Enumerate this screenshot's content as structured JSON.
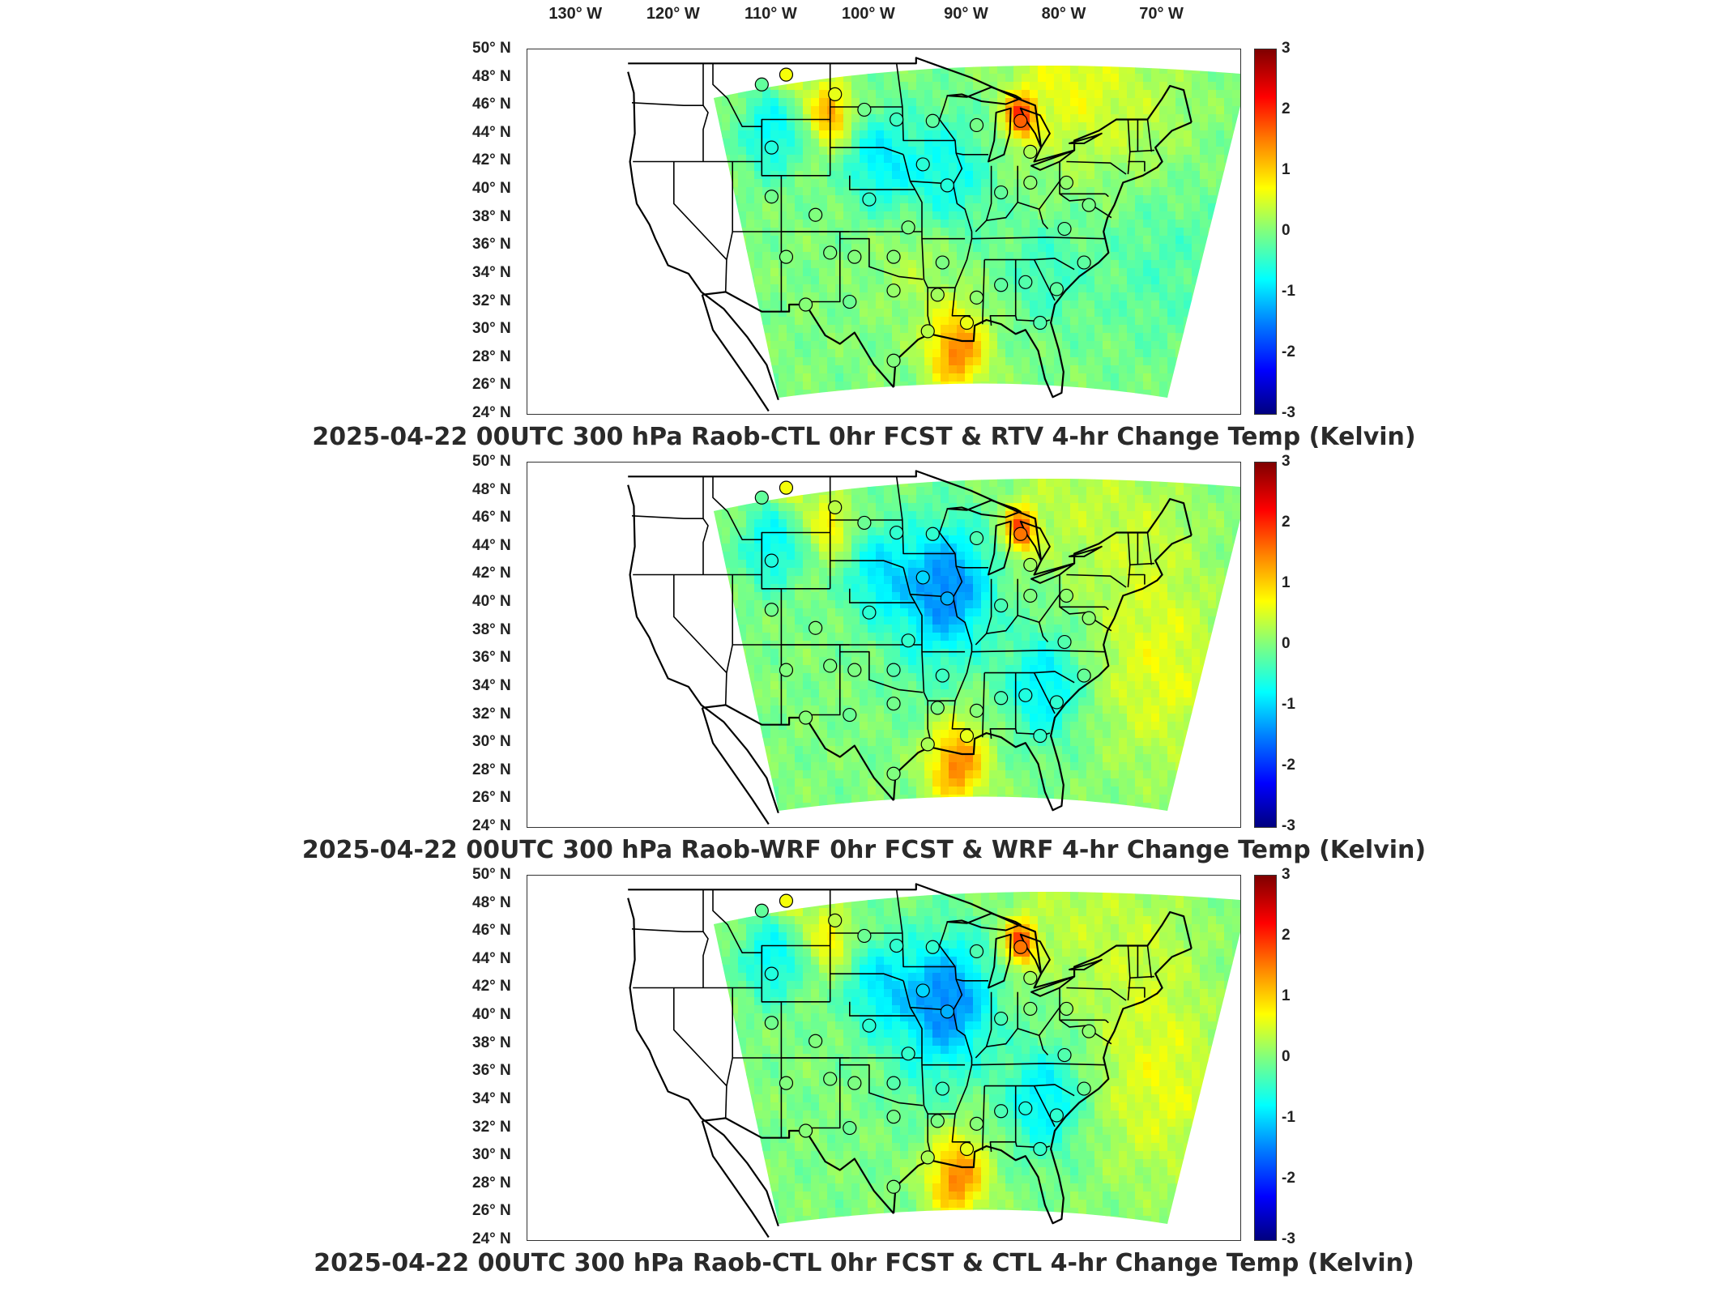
{
  "lon_labels": [
    "130° W",
    "120° W",
    "110° W",
    "100° W",
    "90° W",
    "80° W",
    "70° W"
  ],
  "lat_labels": [
    "50° N",
    "48° N",
    "46° N",
    "44° N",
    "42° N",
    "40° N",
    "38° N",
    "36° N",
    "34° N",
    "32° N",
    "30° N",
    "28° N",
    "26° N",
    "24° N"
  ],
  "colorbar_ticks": [
    "3",
    "2",
    "1",
    "0",
    "-1",
    "-2",
    "-3"
  ],
  "colormap": [
    "#00007f",
    "#0000ff",
    "#007fff",
    "#00ffff",
    "#7fff7f",
    "#ffff00",
    "#ff7f00",
    "#ff0000",
    "#7f0000"
  ],
  "panels": [
    {
      "caption": "2025-04-22 00UTC 300 hPa Raob-CTL 0hr FCST & RTV 4-hr Change Temp (Kelvin)"
    },
    {
      "caption": "2025-04-22 00UTC 300 hPa Raob-WRF 0hr FCST & WRF 4-hr Change Temp (Kelvin)"
    },
    {
      "caption": "2025-04-22 00UTC 300 hPa Raob-CTL 0hr FCST & CTL 4-hr Change Temp (Kelvin)"
    }
  ],
  "chart_data": {
    "type": "heatmap",
    "value_range": [
      -3,
      3
    ],
    "lon_range": [
      -135,
      -62
    ],
    "lat_range": [
      24,
      50
    ],
    "field_description_units": "Kelvin",
    "raob_stations": [
      {
        "lon": -111.0,
        "lat": 47.5
      },
      {
        "lon": -108.5,
        "lat": 48.2
      },
      {
        "lon": -103.5,
        "lat": 46.8
      },
      {
        "lon": -100.5,
        "lat": 45.7
      },
      {
        "lon": -97.2,
        "lat": 45.0
      },
      {
        "lon": -93.5,
        "lat": 44.9
      },
      {
        "lon": -89.0,
        "lat": 44.6
      },
      {
        "lon": -84.5,
        "lat": 44.9
      },
      {
        "lon": -83.5,
        "lat": 42.7
      },
      {
        "lon": -110.0,
        "lat": 43.0
      },
      {
        "lon": -105.5,
        "lat": 38.2
      },
      {
        "lon": -110.0,
        "lat": 39.5
      },
      {
        "lon": -100.0,
        "lat": 39.3
      },
      {
        "lon": -96.0,
        "lat": 37.3
      },
      {
        "lon": -92.0,
        "lat": 40.3
      },
      {
        "lon": -94.5,
        "lat": 41.8
      },
      {
        "lon": -86.5,
        "lat": 39.8
      },
      {
        "lon": -83.5,
        "lat": 40.5
      },
      {
        "lon": -79.8,
        "lat": 40.5
      },
      {
        "lon": -80.0,
        "lat": 37.2
      },
      {
        "lon": -77.5,
        "lat": 38.9
      },
      {
        "lon": -108.5,
        "lat": 35.2
      },
      {
        "lon": -104.0,
        "lat": 35.5
      },
      {
        "lon": -101.5,
        "lat": 35.2
      },
      {
        "lon": -97.5,
        "lat": 35.2
      },
      {
        "lon": -92.5,
        "lat": 34.8
      },
      {
        "lon": -86.5,
        "lat": 33.2
      },
      {
        "lon": -89.0,
        "lat": 32.3
      },
      {
        "lon": -84.0,
        "lat": 33.4
      },
      {
        "lon": -80.8,
        "lat": 32.9
      },
      {
        "lon": -78.0,
        "lat": 34.8
      },
      {
        "lon": -106.5,
        "lat": 31.8
      },
      {
        "lon": -102.0,
        "lat": 32.0
      },
      {
        "lon": -97.5,
        "lat": 32.8
      },
      {
        "lon": -93.0,
        "lat": 32.5
      },
      {
        "lon": -90.0,
        "lat": 30.5
      },
      {
        "lon": -97.5,
        "lat": 27.8
      },
      {
        "lon": -82.5,
        "lat": 30.5
      },
      {
        "lon": -94.0,
        "lat": 29.9
      }
    ]
  }
}
